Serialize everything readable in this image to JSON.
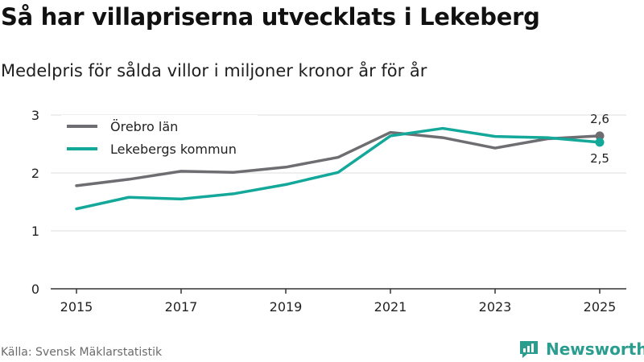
{
  "title": "Så har villapriserna utvecklats i Lekeberg",
  "subtitle": "Medelpris för sålda villor i miljoner kronor år för år",
  "source": "Källa: Svensk Mäklarstatistik",
  "brand": "Newsworthy",
  "colors": {
    "orebro": "#6e6d72",
    "lekeberg": "#13a89a",
    "axis": "#333333",
    "grid": "#dddddd",
    "brand": "#2a9d8f"
  },
  "chart_data": {
    "type": "line",
    "x": [
      2015,
      2016,
      2017,
      2018,
      2019,
      2020,
      2021,
      2022,
      2023,
      2024,
      2025
    ],
    "xticks": [
      "2015",
      "2017",
      "2019",
      "2021",
      "2023",
      "2025"
    ],
    "yticks": [
      "0",
      "1",
      "2",
      "3"
    ],
    "ylim": [
      0,
      3
    ],
    "xlim": [
      2015,
      2025
    ],
    "legend_position": "top-left",
    "series": [
      {
        "name": "Örebro län",
        "values": [
          1.78,
          1.89,
          2.03,
          2.01,
          2.1,
          2.27,
          2.7,
          2.61,
          2.43,
          2.59,
          2.64
        ],
        "end_label": "2,6",
        "color_key": "orebro"
      },
      {
        "name": "Lekebergs kommun",
        "values": [
          1.38,
          1.58,
          1.55,
          1.64,
          1.8,
          2.01,
          2.64,
          2.77,
          2.63,
          2.61,
          2.53
        ],
        "end_label": "2,5",
        "color_key": "lekeberg"
      }
    ]
  }
}
